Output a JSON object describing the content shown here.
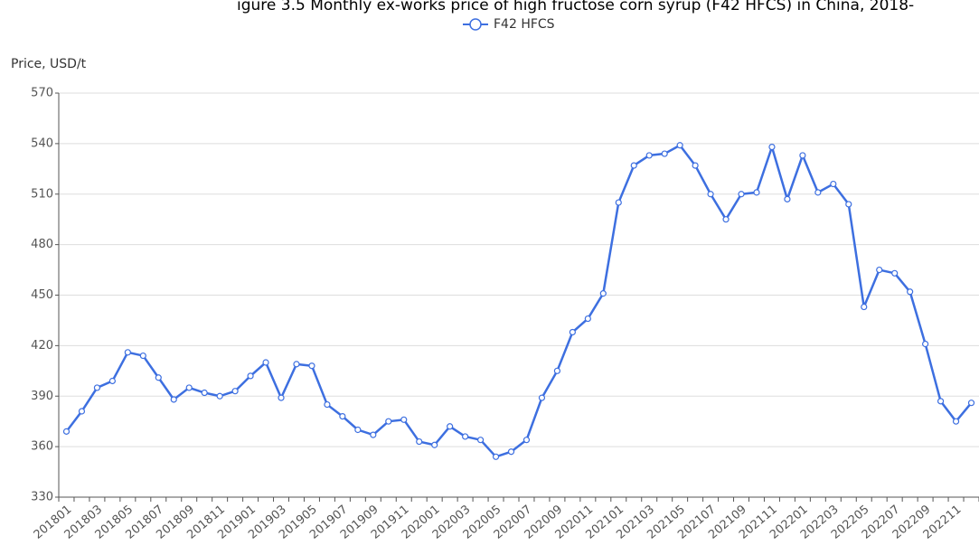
{
  "chart_data": {
    "type": "line",
    "title": "igure 3.5 Monthly ex-works price of high fructose corn syrup (F42 HFCS) in China, 2018-",
    "y_label": "Price, USD/t",
    "categories": [
      "201801",
      null,
      "201803",
      null,
      "201805",
      null,
      "201807",
      null,
      "201809",
      null,
      "201811",
      null,
      "201901",
      null,
      "201903",
      null,
      "201905",
      null,
      "201907",
      null,
      "201909",
      null,
      "201911",
      null,
      "202001",
      null,
      "202003",
      null,
      "202005",
      null,
      "202007",
      null,
      "202009",
      null,
      "202011",
      null,
      "202101",
      null,
      "202103",
      null,
      "202105",
      null,
      "202107",
      null,
      "202109",
      null,
      "202111",
      null,
      "202201",
      null,
      "202203",
      null,
      "202205",
      null,
      "202207",
      null,
      "202209",
      null,
      "202211",
      null
    ],
    "series": [
      {
        "name": "F42 HFCS",
        "color": "#3d6fe0",
        "values": [
          369,
          381,
          395,
          399,
          416,
          414,
          401,
          388,
          395,
          392,
          390,
          393,
          402,
          410,
          389,
          409,
          408,
          385,
          378,
          370,
          367,
          375,
          376,
          363,
          361,
          372,
          366,
          364,
          354,
          357,
          364,
          389,
          405,
          428,
          436,
          451,
          505,
          527,
          533,
          534,
          539,
          527,
          510,
          495,
          510,
          511,
          538,
          507,
          533,
          511,
          516,
          504,
          443,
          465,
          463,
          452,
          421,
          387,
          375,
          386
        ]
      }
    ],
    "ylim": [
      330,
      570
    ],
    "yticks": [
      330,
      360,
      390,
      420,
      450,
      480,
      510,
      540,
      570
    ],
    "grid": true,
    "legend": "top"
  }
}
